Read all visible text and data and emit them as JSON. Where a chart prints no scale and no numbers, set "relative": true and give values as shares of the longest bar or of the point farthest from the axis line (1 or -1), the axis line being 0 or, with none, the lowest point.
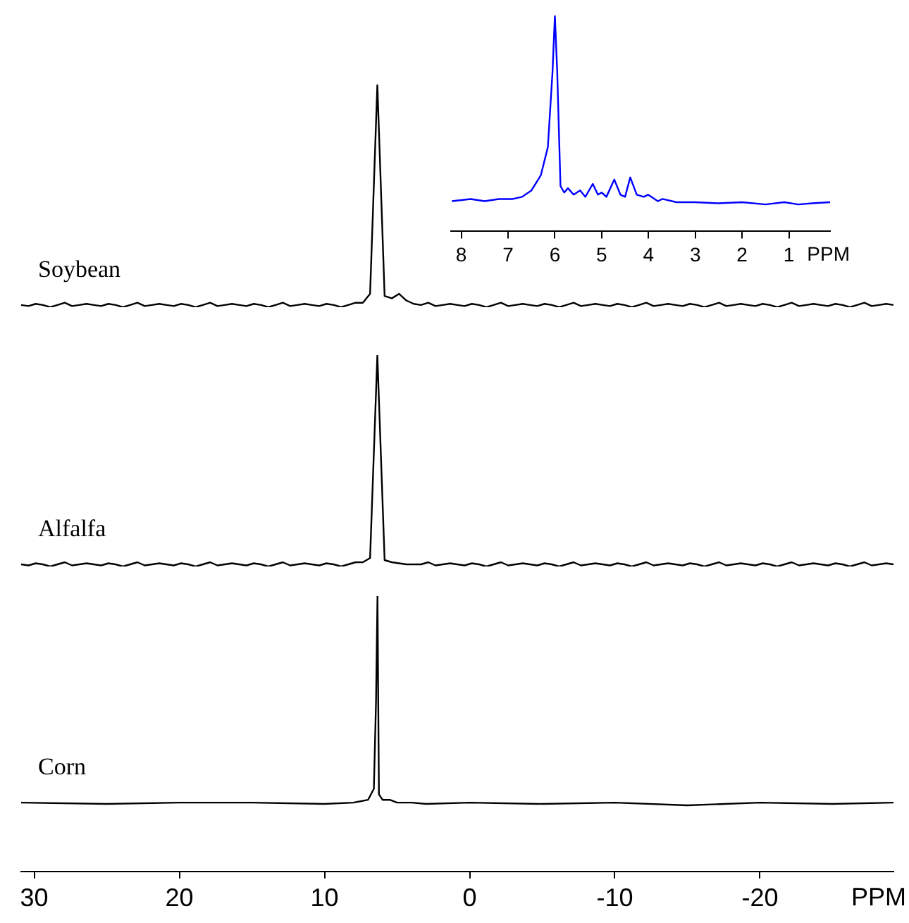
{
  "chart_data": [
    {
      "type": "line",
      "relative": true,
      "marker": "none",
      "tick_labels": false,
      "categories": [
        null,
        null,
        null,
        null,
        null,
        null,
        null,
        null,
        null,
        null,
        null,
        null,
        null,
        null,
        null,
        null,
        null,
        null,
        null,
        null,
        null,
        null,
        null,
        null,
        null,
        null,
        null,
        null,
        null,
        null,
        null,
        null,
        null,
        null,
        null,
        null,
        null,
        null,
        null,
        null,
        null,
        null,
        null,
        null,
        null,
        null,
        null,
        null,
        null,
        null,
        null,
        null,
        null,
        null,
        null,
        null,
        null,
        null,
        null,
        null,
        null,
        null,
        null,
        null,
        null,
        null,
        null,
        null,
        null,
        null,
        null,
        null,
        null,
        null,
        null,
        null,
        null,
        null,
        null,
        null,
        null,
        null,
        null,
        null,
        null,
        null,
        null,
        null,
        null,
        null,
        null,
        null,
        null,
        null,
        null,
        null,
        null,
        null,
        null,
        null,
        null,
        null,
        null,
        null,
        null,
        null,
        null,
        null,
        null,
        null,
        null,
        null,
        null,
        null,
        null,
        null,
        null,
        null,
        null,
        null,
        null
      ],
      "series": [
        {
          "name": "Soybean",
          "color": "#000000",
          "values": [
            0.01,
            0.005,
            0.015,
            0.01,
            0,
            0.01,
            0.02,
            0.005,
            0.01,
            0.015,
            0.01,
            0.005,
            0.015,
            0.01,
            0,
            0.01,
            0.02,
            0.005,
            0.01,
            0.015,
            0.01,
            0.005,
            0.015,
            0.01,
            0,
            0.01,
            0.02,
            0.005,
            0.01,
            0.015,
            0.01,
            0.005,
            0.015,
            0.01,
            0,
            0.01,
            0.02,
            0.005,
            0.01,
            0.015,
            0.01,
            0.005,
            0.015,
            0.01,
            0,
            0.01,
            0.02,
            0.02,
            0.06,
            1,
            0.05,
            0.04,
            0.06,
            0.03,
            0.015,
            0.01,
            0.02,
            0.005,
            0.01,
            0.015,
            0.01,
            0.005,
            0.015,
            0.01,
            0,
            0.01,
            0.02,
            0.005,
            0.01,
            0.015,
            0.01,
            0.005,
            0.015,
            0.01,
            0,
            0.01,
            0.02,
            0.005,
            0.01,
            0.015,
            0.01,
            0.005,
            0.015,
            0.01,
            0,
            0.01,
            0.02,
            0.005,
            0.01,
            0.015,
            0.01,
            0.005,
            0.015,
            0.01,
            0,
            0.01,
            0.02,
            0.005,
            0.01,
            0.015,
            0.01,
            0.005,
            0.015,
            0.01,
            0,
            0.01,
            0.02,
            0.005,
            0.01,
            0.015,
            0.01,
            0.005,
            0.015,
            0.01,
            0,
            0.01,
            0.02,
            0.005,
            0.01,
            0.015,
            0.01
          ]
        }
      ]
    },
    {
      "type": "line",
      "relative": true,
      "marker": "none",
      "tick_labels": "x",
      "xlabel": "PPM",
      "xlim": [
        8.22,
        0.12
      ],
      "xticks": [
        8,
        7,
        6,
        5,
        4,
        3,
        2,
        1
      ],
      "series": [
        {
          "color": "#0000ff",
          "x": [
            8.2,
            7.8,
            7.5,
            7.2,
            6.9,
            6.7,
            6.5,
            6.3,
            6.15,
            6.05,
            6.0,
            5.95,
            5.88,
            5.8,
            5.72,
            5.6,
            5.46,
            5.35,
            5.19,
            5.08,
            5.0,
            4.9,
            4.73,
            4.6,
            4.5,
            4.39,
            4.25,
            4.1,
            4.01,
            3.8,
            3.7,
            3.4,
            3.0,
            2.5,
            2.0,
            1.5,
            1.1,
            0.8,
            0.5,
            0.12
          ],
          "values": [
            0.14,
            0.15,
            0.14,
            0.15,
            0.15,
            0.16,
            0.19,
            0.26,
            0.39,
            0.74,
            1,
            0.74,
            0.21,
            0.18,
            0.2,
            0.17,
            0.19,
            0.16,
            0.22,
            0.17,
            0.18,
            0.16,
            0.24,
            0.17,
            0.16,
            0.25,
            0.17,
            0.16,
            0.17,
            0.14,
            0.15,
            0.135,
            0.135,
            0.13,
            0.135,
            0.125,
            0.135,
            0.125,
            0.13,
            0.135
          ]
        }
      ]
    },
    {
      "type": "line",
      "relative": true,
      "marker": "none",
      "tick_labels": false,
      "categories": [
        null,
        null,
        null,
        null,
        null,
        null,
        null,
        null,
        null,
        null,
        null,
        null,
        null,
        null,
        null,
        null,
        null,
        null,
        null,
        null,
        null,
        null,
        null,
        null,
        null,
        null,
        null,
        null,
        null,
        null,
        null,
        null,
        null,
        null,
        null,
        null,
        null,
        null,
        null,
        null,
        null,
        null,
        null,
        null,
        null,
        null,
        null,
        null,
        null,
        null,
        null,
        null,
        null,
        null,
        null,
        null,
        null,
        null,
        null,
        null,
        null,
        null,
        null,
        null,
        null,
        null,
        null,
        null,
        null,
        null,
        null,
        null,
        null,
        null,
        null,
        null,
        null,
        null,
        null,
        null,
        null,
        null,
        null,
        null,
        null,
        null,
        null,
        null,
        null,
        null,
        null,
        null,
        null,
        null,
        null,
        null,
        null,
        null,
        null,
        null,
        null,
        null,
        null,
        null,
        null,
        null,
        null,
        null,
        null,
        null,
        null,
        null,
        null,
        null,
        null,
        null,
        null,
        null,
        null,
        null,
        null
      ],
      "series": [
        {
          "name": "Alfalfa",
          "color": "#000000",
          "values": [
            0.01,
            0.005,
            0.015,
            0.01,
            0,
            0.01,
            0.02,
            0.005,
            0.01,
            0.015,
            0.01,
            0.005,
            0.015,
            0.01,
            0,
            0.01,
            0.02,
            0.005,
            0.01,
            0.015,
            0.01,
            0.005,
            0.015,
            0.01,
            0,
            0.01,
            0.02,
            0.005,
            0.01,
            0.015,
            0.01,
            0.005,
            0.015,
            0.01,
            0,
            0.01,
            0.02,
            0.005,
            0.01,
            0.015,
            0.01,
            0.005,
            0.015,
            0.01,
            0,
            0.01,
            0.02,
            0.02,
            0.04,
            1,
            0.03,
            0.02,
            0.015,
            0.01,
            0.01,
            0.01,
            0.02,
            0.005,
            0.01,
            0.015,
            0.01,
            0.005,
            0.015,
            0.01,
            0,
            0.01,
            0.02,
            0.005,
            0.01,
            0.015,
            0.01,
            0.005,
            0.015,
            0.01,
            0,
            0.01,
            0.02,
            0.005,
            0.01,
            0.015,
            0.01,
            0.005,
            0.015,
            0.01,
            0,
            0.01,
            0.02,
            0.005,
            0.01,
            0.015,
            0.01,
            0.005,
            0.015,
            0.01,
            0,
            0.01,
            0.02,
            0.005,
            0.01,
            0.015,
            0.01,
            0.005,
            0.015,
            0.01,
            0,
            0.01,
            0.02,
            0.005,
            0.01,
            0.015,
            0.01,
            0.005,
            0.015,
            0.01,
            0,
            0.01,
            0.02,
            0.005,
            0.01,
            0.015,
            0.01
          ]
        }
      ]
    },
    {
      "type": "line",
      "relative": true,
      "marker": "none",
      "tick_labels": "x",
      "xlabel": "PPM",
      "xlim": [
        30.9,
        -29.2
      ],
      "xticks": [
        30,
        20,
        10,
        0,
        -10,
        -20
      ],
      "series": [
        {
          "name": "Corn",
          "color": "#000000",
          "x": [
            30.9,
            25,
            20,
            15,
            10,
            8,
            7,
            6.6,
            6.45,
            6.35,
            6.25,
            6.0,
            5.5,
            5.0,
            4.0,
            3,
            0,
            -5,
            -10,
            -15,
            -20,
            -25,
            -29.2
          ],
          "values": [
            0.25,
            0.245,
            0.25,
            0.25,
            0.245,
            0.25,
            0.26,
            0.3,
            0.62,
            1,
            0.28,
            0.26,
            0.26,
            0.25,
            0.25,
            0.245,
            0.25,
            0.245,
            0.25,
            0.24,
            0.25,
            0.245,
            0.25
          ]
        }
      ]
    }
  ]
}
